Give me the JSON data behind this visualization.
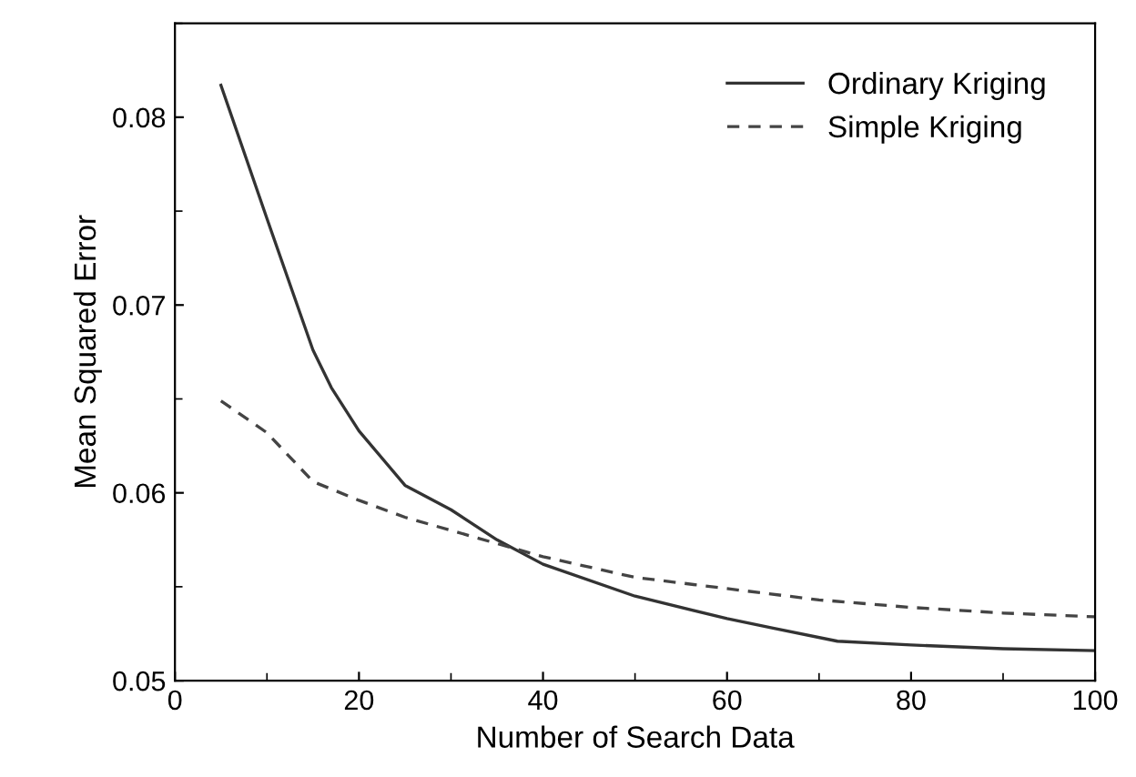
{
  "chart_data": {
    "type": "line",
    "xlabel": "Number of Search Data",
    "ylabel": "Mean Squared Error",
    "xlim": [
      0,
      100
    ],
    "xticks": [
      0,
      20,
      40,
      60,
      80,
      100
    ],
    "ylim": [
      0.05,
      0.085
    ],
    "yticks": [
      0.05,
      0.06,
      0.07,
      0.08
    ],
    "legend": "top right",
    "grid": false,
    "marker": "none",
    "series": [
      {
        "name": "Ordinary Kriging",
        "color": "#333333",
        "line_style": "solid",
        "x": [
          5,
          10,
          15,
          17,
          20,
          25,
          30,
          35,
          40,
          50,
          60,
          65,
          72,
          80,
          90,
          100
        ],
        "values": [
          0.0817,
          0.0746,
          0.0676,
          0.0656,
          0.0633,
          0.0604,
          0.0591,
          0.0575,
          0.0562,
          0.0545,
          0.0533,
          0.0528,
          0.0521,
          0.0519,
          0.0517,
          0.0516
        ]
      },
      {
        "name": "Simple Kriging",
        "color": "#444444",
        "line_style": "dashed",
        "x": [
          5,
          10,
          15,
          20,
          25,
          30,
          40,
          50,
          60,
          70,
          80,
          90,
          100
        ],
        "values": [
          0.0649,
          0.0632,
          0.0606,
          0.0596,
          0.0587,
          0.058,
          0.0566,
          0.0555,
          0.0549,
          0.0543,
          0.0539,
          0.0536,
          0.0534
        ]
      }
    ]
  }
}
